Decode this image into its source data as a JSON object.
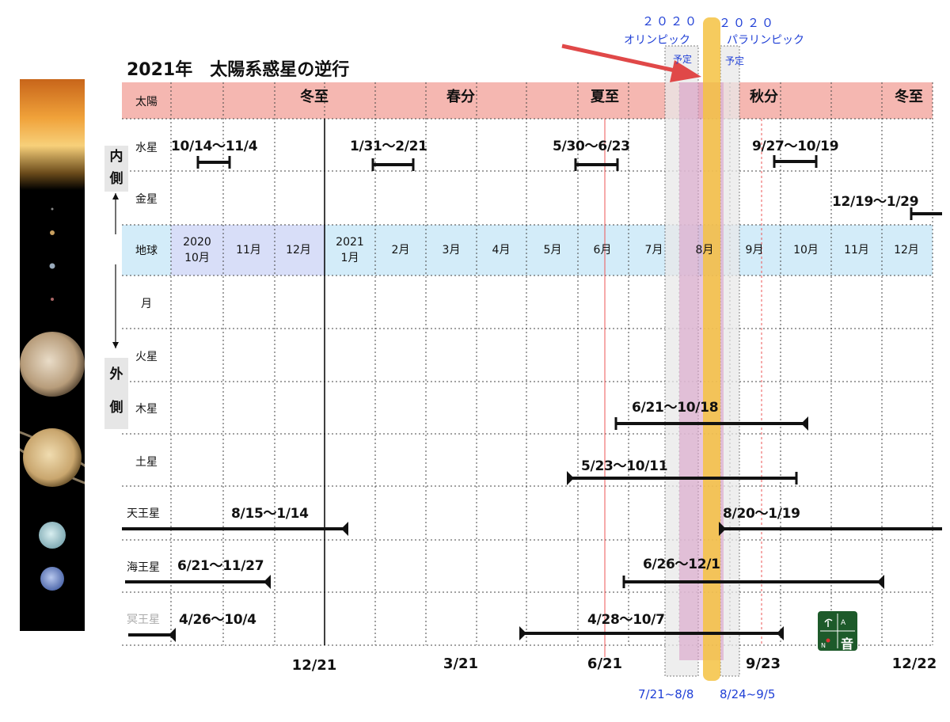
{
  "title": "2021年　太陽系惑星の逆行",
  "side_labels": {
    "inner": "内側",
    "outer": "外側"
  },
  "rows": [
    {
      "key": "sun",
      "label": "太陽"
    },
    {
      "key": "mercury",
      "label": "水星"
    },
    {
      "key": "venus",
      "label": "金星"
    },
    {
      "key": "earth",
      "label": "地球"
    },
    {
      "key": "moon",
      "label": "月"
    },
    {
      "key": "mars",
      "label": "火星"
    },
    {
      "key": "jupiter",
      "label": "木星"
    },
    {
      "key": "saturn",
      "label": "土星"
    },
    {
      "key": "uranus",
      "label": "天王星"
    },
    {
      "key": "neptune",
      "label": "海王星"
    },
    {
      "key": "pluto",
      "label": "冥王星"
    }
  ],
  "seasons": [
    "冬至",
    "春分",
    "夏至",
    "秋分",
    "冬至"
  ],
  "months": [
    {
      "line1": "2020",
      "line2": "10月"
    },
    {
      "line1": "11月",
      "line2": ""
    },
    {
      "line1": "12月",
      "line2": ""
    },
    {
      "line1": "2021",
      "line2": "1月"
    },
    {
      "line1": "2月",
      "line2": ""
    },
    {
      "line1": "3月",
      "line2": ""
    },
    {
      "line1": "4月",
      "line2": ""
    },
    {
      "line1": "5月",
      "line2": ""
    },
    {
      "line1": "6月",
      "line2": ""
    },
    {
      "line1": "7月",
      "line2": ""
    },
    {
      "line1": "8月",
      "line2": ""
    },
    {
      "line1": "9月",
      "line2": ""
    },
    {
      "line1": "10月",
      "line2": ""
    },
    {
      "line1": "11月",
      "line2": ""
    },
    {
      "line1": "12月",
      "line2": ""
    }
  ],
  "retrogrades": {
    "mercury": [
      "10/14〜11/4",
      "1/31〜2/21",
      "5/30〜6/23",
      "9/27〜10/19"
    ],
    "venus": [
      "12/19〜1/29"
    ],
    "jupiter": [
      "6/21〜10/18"
    ],
    "saturn": [
      "5/23〜10/11"
    ],
    "uranus": [
      "8/15〜1/14",
      "8/20〜1/19"
    ],
    "neptune": [
      "6/21〜11/27",
      "6/26〜12/1"
    ],
    "pluto": [
      "4/26〜10/4",
      "4/28〜10/7"
    ]
  },
  "bottom_dates": [
    "12/21",
    "3/21",
    "6/21",
    "9/23",
    "12/22"
  ],
  "olympics": {
    "year": "２０２０",
    "olympic": "オリンピック",
    "paralympic": "パラリンピック",
    "planned": "予定",
    "olympic_dates": "7/21~8/8",
    "paralympic_dates": "8/24~9/5"
  },
  "logo": {
    "letters": [
      "A",
      "N",
      "音"
    ]
  },
  "colors": {
    "sun_band": "#f5b7b1",
    "earth_band": "#d3ecf9",
    "highlight_bar": "#f5c242",
    "pink_bar": "#d9a0c8",
    "arrow": "#e04848",
    "blue_text": "#1f3fd6",
    "logo_bg": "#1d5a2a"
  }
}
